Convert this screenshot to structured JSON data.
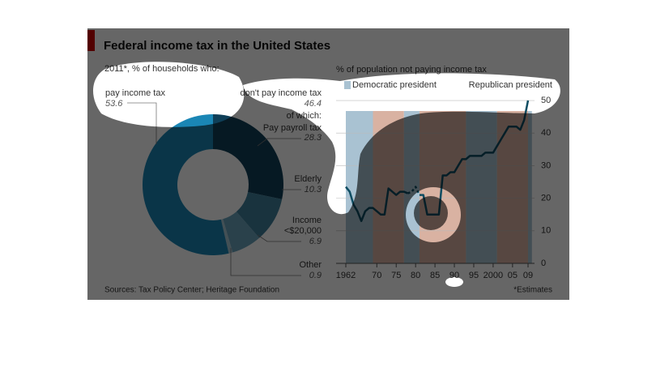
{
  "charts": [
    {
      "type": "donut",
      "title": "Federal income tax in the United States",
      "subtitle": "2011*, % of households who:",
      "categories": [
        [
          "pay income tax"
        ],
        [
          "Pay payroll tax"
        ],
        [
          "Elderly"
        ],
        [
          "Income",
          "<$20,000"
        ],
        [
          "Other"
        ]
      ],
      "values": [
        53.6,
        28.3,
        10.3,
        6.9,
        0.9
      ],
      "colors": [
        "#1a86b5",
        "#0f3f58",
        "#3f7f9c",
        "#6aa3bb",
        "#a8c7d4"
      ],
      "group": {
        "label": "don't pay income tax",
        "value": 46.4,
        "sub": "of which:"
      },
      "source": "Sources: Tax Policy Center; Heritage Foundation"
    },
    {
      "type": "line",
      "title": "% of population not paying income tax",
      "legend": [
        {
          "name": "Democratic president",
          "color": "#a9c2d2"
        },
        {
          "name": "Republican president",
          "color": "#d9b2a2"
        }
      ],
      "bands": [
        {
          "start": 1962,
          "end": 1969,
          "party": 0
        },
        {
          "start": 1969,
          "end": 1977,
          "party": 1
        },
        {
          "start": 1977,
          "end": 1981,
          "party": 0
        },
        {
          "start": 1981,
          "end": 1993,
          "party": 1
        },
        {
          "start": 1993,
          "end": 2001,
          "party": 0
        },
        {
          "start": 2001,
          "end": 2009,
          "party": 1
        },
        {
          "start": 2009,
          "end": 2010,
          "party": 0
        }
      ],
      "x": [
        1962,
        1963,
        1964,
        1965,
        1966,
        1967,
        1968,
        1969,
        1970,
        1971,
        1972,
        1973,
        1974,
        1975,
        1976,
        1977,
        1978,
        1979,
        1980,
        1981,
        1982,
        1983,
        1984,
        1985,
        1986,
        1987,
        1988,
        1989,
        1990,
        1991,
        1992,
        1993,
        1994,
        1995,
        1996,
        1997,
        1998,
        1999,
        2000,
        2001,
        2002,
        2003,
        2004,
        2005,
        2006,
        2007,
        2008,
        2009
      ],
      "series": [
        {
          "color": "#0e4d62",
          "dashed": false,
          "values": [
            23.5,
            22,
            18,
            16,
            13,
            16,
            17,
            17,
            16,
            15,
            15,
            23,
            22,
            21,
            22,
            22,
            21.5,
            null,
            null,
            21,
            21,
            15,
            15,
            15,
            15,
            27,
            27,
            28,
            28,
            30,
            32,
            32,
            33,
            33,
            33,
            33,
            34,
            34,
            34,
            36,
            38,
            40,
            42,
            42,
            42,
            41,
            44,
            50
          ]
        },
        {
          "color": "#0e4d62",
          "dashed": true,
          "values": [
            null,
            null,
            null,
            null,
            null,
            null,
            null,
            null,
            null,
            null,
            null,
            null,
            null,
            null,
            null,
            null,
            21.5,
            22,
            23.5,
            21,
            null,
            null,
            null,
            null,
            null,
            null,
            null,
            null,
            null,
            null,
            null,
            null,
            null,
            null,
            null,
            null,
            null,
            null,
            null,
            null,
            null,
            null,
            null,
            null,
            null,
            null,
            null,
            null
          ]
        }
      ],
      "xlim": [
        1960,
        2011
      ],
      "xticks": [
        1962,
        {
          "value": 1970,
          "label": "70"
        },
        {
          "value": 1975,
          "label": "75"
        },
        {
          "value": 1980,
          "label": "80"
        },
        {
          "value": 1985,
          "label": "85"
        },
        {
          "value": 1990,
          "label": "90"
        },
        {
          "value": 1995,
          "label": "95"
        },
        2000,
        {
          "value": 2005,
          "label": "05"
        },
        {
          "value": 2009,
          "label": "09"
        }
      ],
      "ylim": [
        0,
        52
      ],
      "yticks": [
        0,
        10,
        20,
        30,
        40,
        50
      ],
      "grid": true,
      "note": "*Estimates"
    }
  ]
}
